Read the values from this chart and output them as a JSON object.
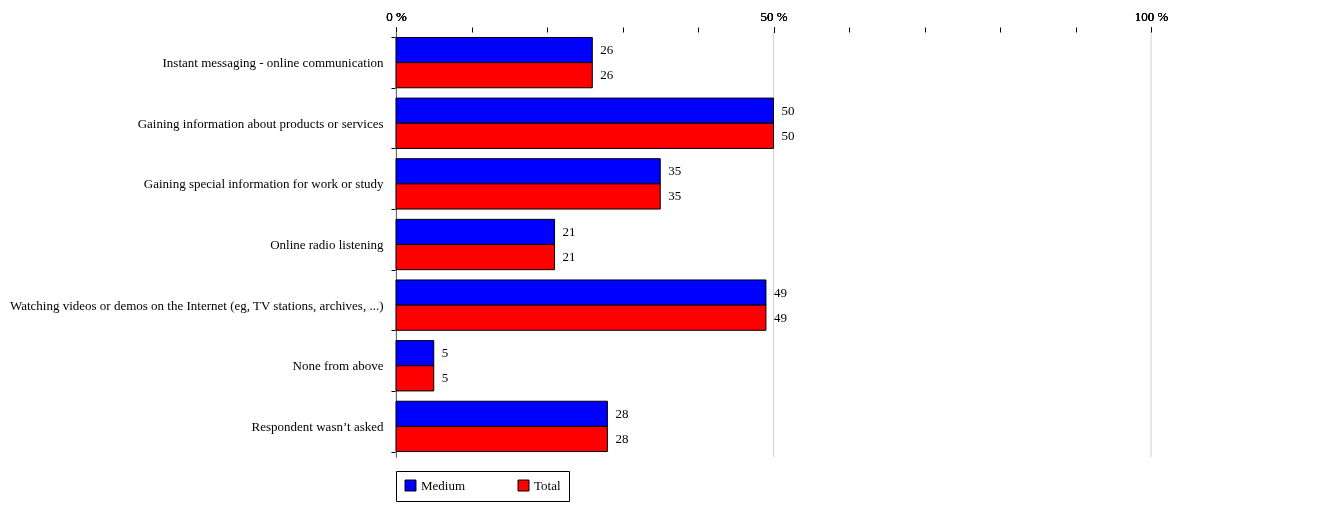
{
  "chart_data": {
    "type": "bar",
    "orientation": "horizontal",
    "categories": [
      "Instant messaging - online communication",
      "Gaining information about products or services",
      "Gaining special information for work or study",
      "Online radio listening",
      "Watching videos or demos on the Internet (eg, TV stations, archives, ...)",
      "None from above",
      "Respondent wasn’t asked"
    ],
    "series": [
      {
        "name": "Medium",
        "color": "#0000ff",
        "values": [
          26,
          50,
          35,
          21,
          49,
          5,
          28
        ]
      },
      {
        "name": "Total",
        "color": "#ff0000",
        "values": [
          26,
          50,
          35,
          21,
          49,
          5,
          28
        ]
      }
    ],
    "xlim": [
      0,
      100
    ],
    "xticks": [
      {
        "value": 0,
        "label": "0 %"
      },
      {
        "value": 10,
        "label": null
      },
      {
        "value": 20,
        "label": null
      },
      {
        "value": 30,
        "label": null
      },
      {
        "value": 40,
        "label": null
      },
      {
        "value": 50,
        "label": "50 %"
      },
      {
        "value": 60,
        "label": null
      },
      {
        "value": 70,
        "label": null
      },
      {
        "value": 80,
        "label": null
      },
      {
        "value": 90,
        "label": null
      },
      {
        "value": 100,
        "label": "100 %"
      }
    ],
    "grid": "x",
    "data_labels": true,
    "legend": "bottom"
  }
}
